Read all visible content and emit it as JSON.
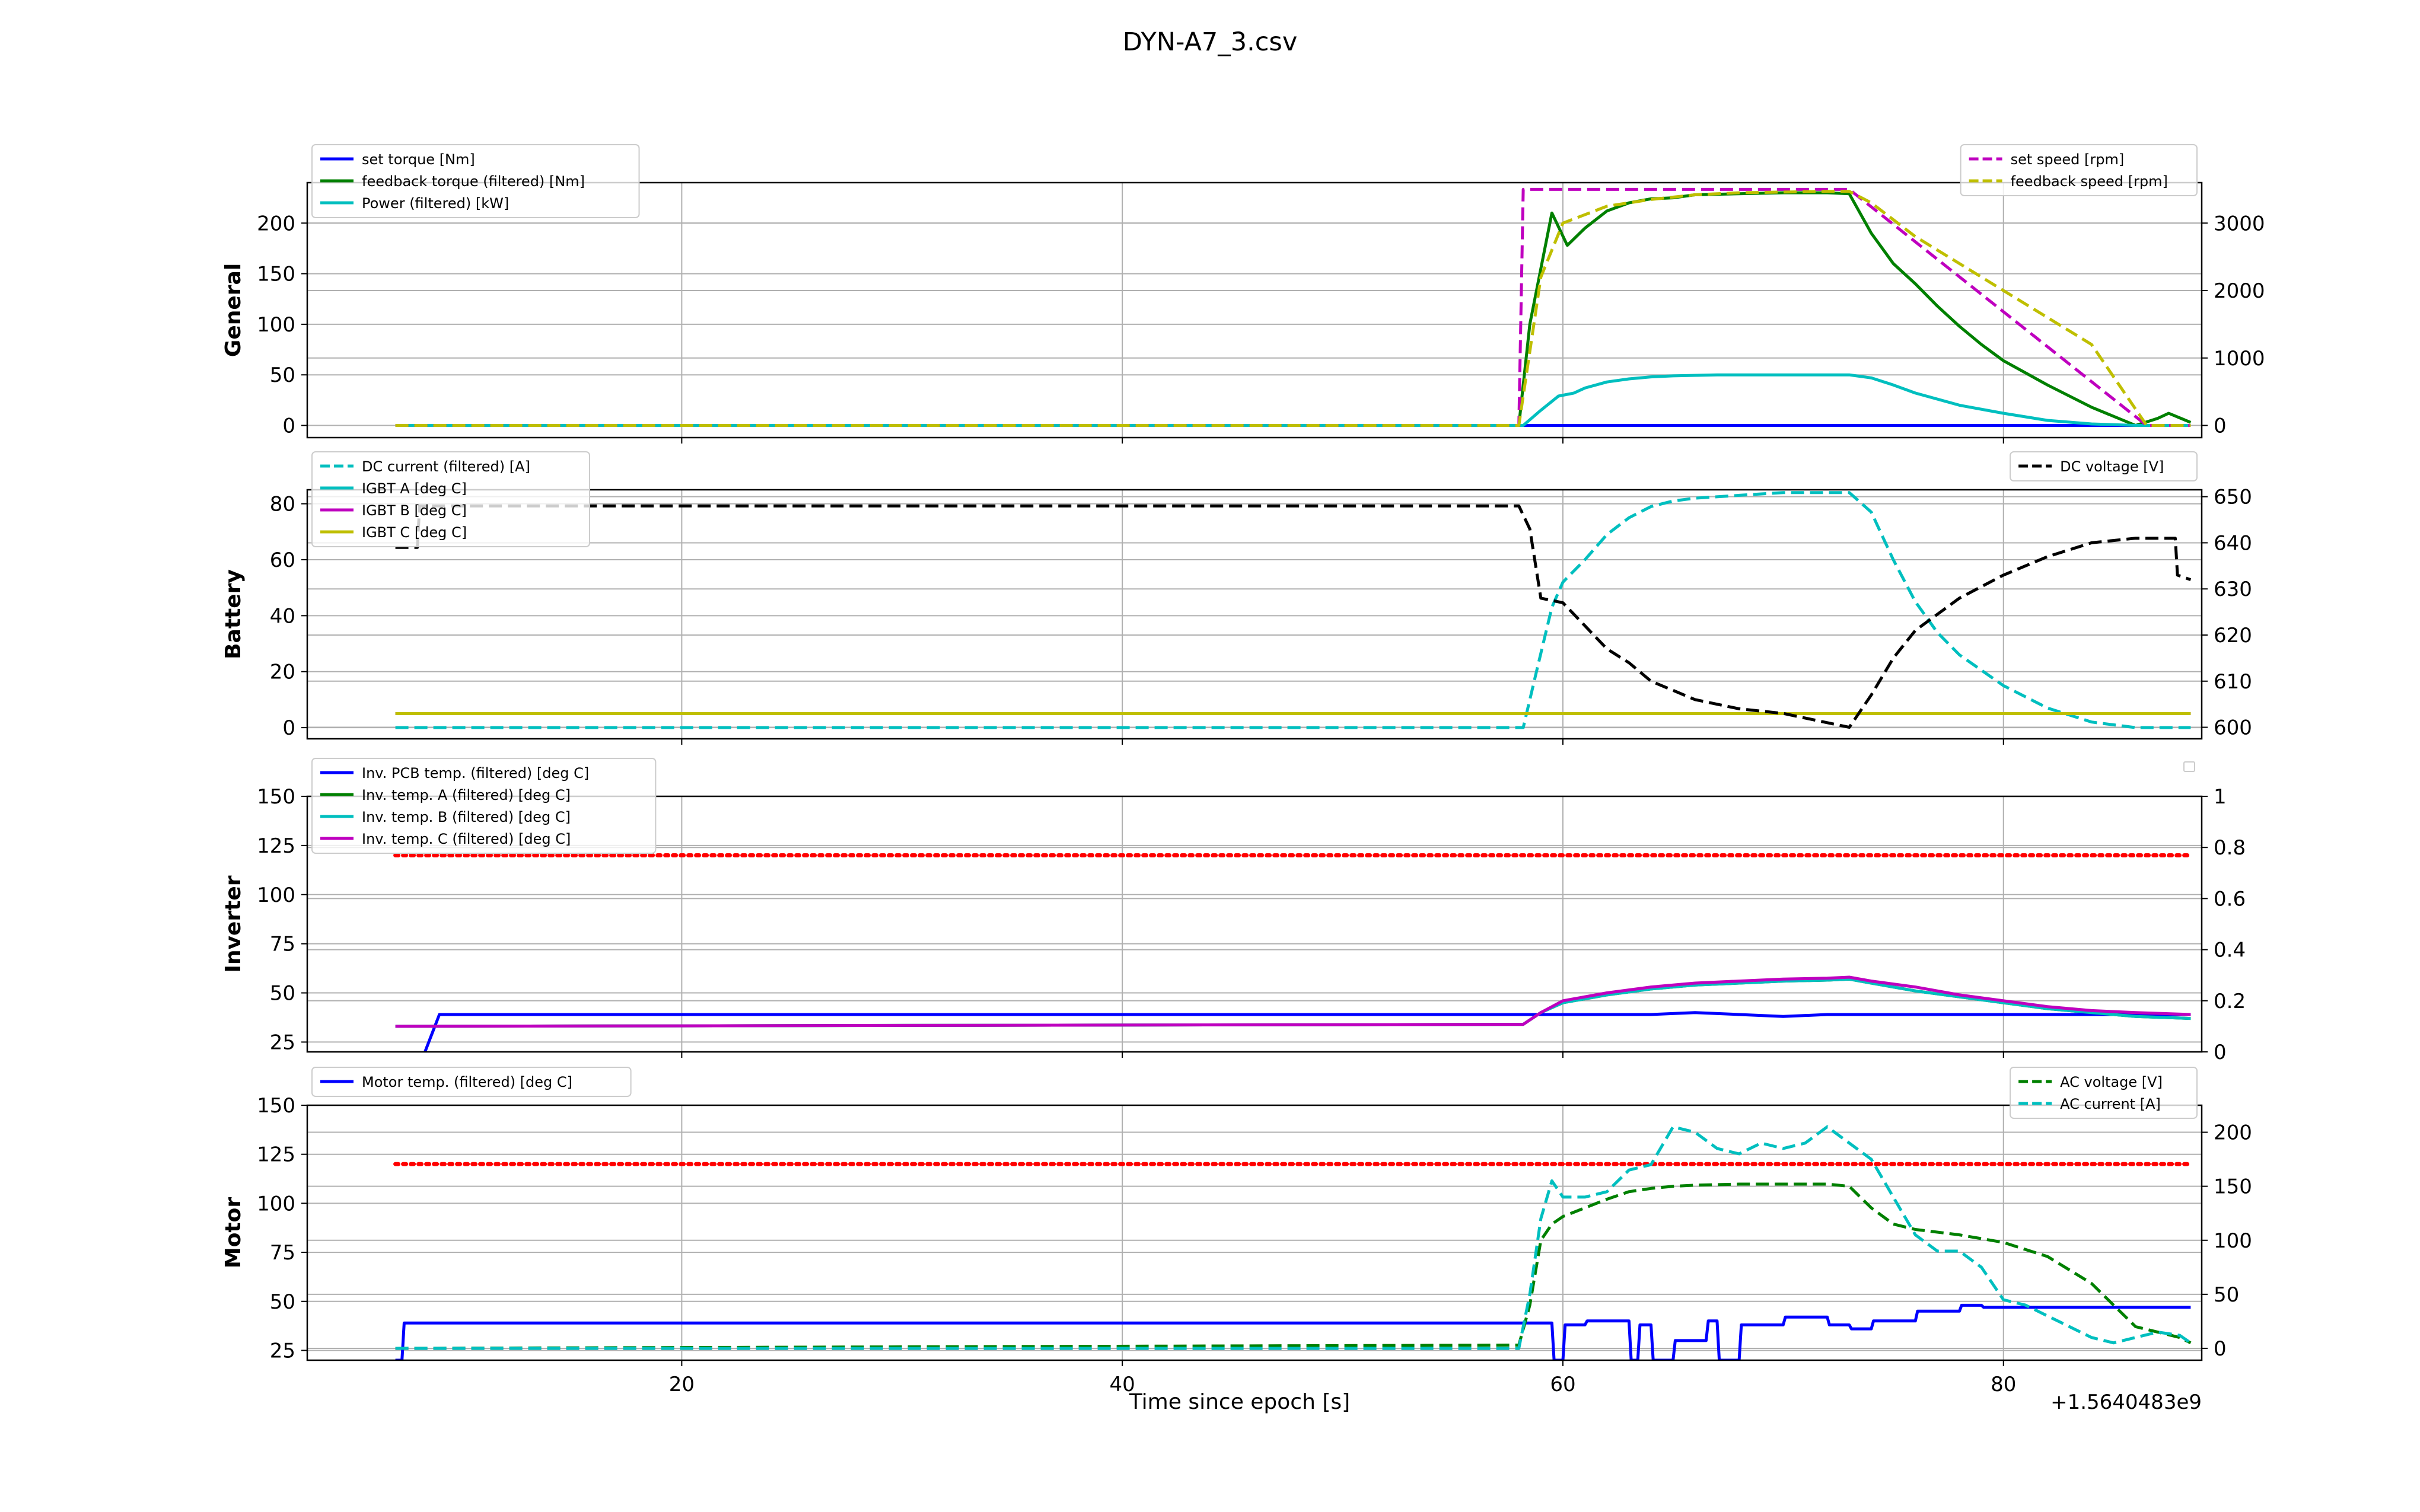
{
  "figure": {
    "title": "DYN-A7_3.csv",
    "xlabel": "Time since epoch [s]",
    "x_offset_label": "+1.5640483e9"
  },
  "chart_data": [
    {
      "type": "line",
      "ylabel": "General",
      "xlim": [
        3,
        89
      ],
      "x_ticks": [
        20,
        40,
        60,
        80
      ],
      "ylim_left": [
        -12,
        240
      ],
      "ylim_right": [
        -180,
        3600
      ],
      "y_ticks_left": [
        0,
        50,
        100,
        150,
        200
      ],
      "y_ticks_right": [
        0,
        1000,
        2000,
        3000
      ],
      "grid": true,
      "legend_left": "top-left",
      "legend_right": "top-right",
      "series": [
        {
          "name": "set torque [Nm]",
          "axis": "left",
          "color": "#0000ff",
          "dash": "solid",
          "x": [
            7,
            58.2,
            58.4,
            88.5
          ],
          "y": [
            0,
            0,
            0,
            0
          ]
        },
        {
          "name": "feedback torque (filtered) [Nm]",
          "axis": "left",
          "color": "#008000",
          "dash": "solid",
          "x": [
            7,
            58,
            58.5,
            59.5,
            60.2,
            61,
            62,
            63,
            64,
            65,
            66,
            68,
            70,
            72,
            73,
            74,
            75,
            76,
            77,
            78,
            79,
            80,
            82,
            84,
            86,
            87,
            87.5,
            88.5
          ],
          "y": [
            0,
            0,
            100,
            210,
            178,
            195,
            212,
            220,
            224,
            225,
            228,
            229,
            230,
            230,
            229,
            190,
            160,
            140,
            118,
            98,
            80,
            64,
            40,
            18,
            0,
            7,
            12,
            3
          ]
        },
        {
          "name": "Power (filtered) [kW]",
          "axis": "left",
          "color": "#00bfbf",
          "dash": "solid",
          "x": [
            7,
            58.2,
            59,
            59.8,
            60.5,
            61,
            62,
            63,
            64,
            65,
            67,
            70,
            73,
            74,
            75,
            76,
            78,
            80,
            82,
            84,
            86,
            88.5
          ],
          "y": [
            0,
            0,
            15,
            29,
            32,
            37,
            43,
            46,
            48,
            49,
            50,
            50,
            50,
            47,
            40,
            32,
            20,
            12,
            5,
            1.5,
            0,
            0
          ]
        },
        {
          "name": "set speed [rpm]",
          "axis": "right",
          "color": "#bf00bf",
          "dash": "dashed",
          "x": [
            7,
            58,
            58.2,
            73,
            86.5,
            88.5
          ],
          "y": [
            0,
            0,
            3500,
            3500,
            0,
            0
          ]
        },
        {
          "name": "feedback speed [rpm]",
          "axis": "right",
          "color": "#bfbf00",
          "dash": "dashed",
          "x": [
            7,
            58,
            59,
            60,
            62,
            64,
            66,
            68,
            70,
            72,
            73,
            74,
            76,
            80,
            84,
            86.5,
            88.5
          ],
          "y": [
            0,
            0,
            2200,
            3000,
            3250,
            3350,
            3420,
            3450,
            3460,
            3470,
            3470,
            3300,
            2800,
            2000,
            1200,
            0,
            0
          ]
        }
      ]
    },
    {
      "type": "line",
      "ylabel": "Battery",
      "xlim": [
        3,
        89
      ],
      "x_ticks": [
        20,
        40,
        60,
        80
      ],
      "ylim_left": [
        -4,
        85
      ],
      "ylim_right": [
        597.5,
        651.5
      ],
      "y_ticks_left": [
        0,
        20,
        40,
        60,
        80
      ],
      "y_ticks_right": [
        600,
        610,
        620,
        630,
        640,
        650
      ],
      "grid": true,
      "legend_left": "top-left",
      "legend_right": "top-right",
      "series": [
        {
          "name": "DC current (filtered) [A]",
          "axis": "left",
          "color": "#00bfbf",
          "dash": "dashed",
          "x": [
            7,
            58.2,
            58.8,
            59.5,
            60,
            61,
            62,
            63,
            64,
            65,
            66,
            68,
            70,
            73,
            74,
            75,
            76,
            77,
            78,
            80,
            82,
            84,
            86,
            88.5
          ],
          "y": [
            0,
            0,
            20,
            43,
            52,
            60,
            69,
            75,
            79,
            81,
            82,
            83,
            84,
            84,
            77,
            60,
            45,
            34,
            26,
            15,
            7,
            2,
            0,
            0
          ]
        },
        {
          "name": "IGBT A [deg C]",
          "axis": "left",
          "color": "#00bfbf",
          "dash": "solid",
          "x": [
            7,
            88.5
          ],
          "y": [
            5,
            5
          ]
        },
        {
          "name": "IGBT B [deg C]",
          "axis": "left",
          "color": "#bf00bf",
          "dash": "solid",
          "x": [
            7,
            88.5
          ],
          "y": [
            5,
            5
          ]
        },
        {
          "name": "IGBT C [deg C]",
          "axis": "left",
          "color": "#bfbf00",
          "dash": "solid",
          "x": [
            7,
            88.5
          ],
          "y": [
            5,
            5
          ]
        },
        {
          "name": "DC voltage [V]",
          "axis": "right",
          "color": "#000000",
          "dash": "dashed",
          "x": [
            7,
            8,
            8.1,
            58,
            58.5,
            59,
            60,
            61,
            62,
            63,
            64,
            65,
            66,
            68,
            70,
            72,
            73,
            74,
            75,
            76,
            78,
            80,
            82,
            84,
            86,
            87,
            87.8,
            87.9,
            88.5
          ],
          "y": [
            639,
            639,
            648,
            648,
            643,
            628,
            627,
            622,
            617,
            614,
            610,
            608,
            606,
            604,
            603,
            601,
            600,
            607,
            615,
            621,
            628,
            633,
            637,
            640,
            641,
            641,
            641,
            633,
            632
          ]
        }
      ]
    },
    {
      "type": "line",
      "ylabel": "Inverter",
      "xlim": [
        3,
        89
      ],
      "x_ticks": [
        20,
        40,
        60,
        80
      ],
      "ylim_left": [
        20,
        150
      ],
      "ylim_right": [
        0,
        1
      ],
      "y_ticks_left": [
        25,
        50,
        75,
        100,
        125,
        150
      ],
      "y_ticks_right": [
        0.0,
        0.2,
        0.4,
        0.6,
        0.8,
        1.0
      ],
      "grid": true,
      "legend_left": "top-left",
      "legend_right": "top-right",
      "series": [
        {
          "name": "Inv. PCB temp. (filtered) [deg C]",
          "axis": "left",
          "color": "#0000ff",
          "dash": "solid",
          "x": [
            7,
            8,
            9,
            58,
            60,
            62,
            64,
            66,
            68,
            70,
            72,
            74,
            76,
            80,
            84,
            88.5
          ],
          "y": [
            10,
            10,
            39,
            39,
            39,
            39,
            39,
            40,
            39,
            38,
            39,
            39,
            39,
            39,
            39,
            39
          ]
        },
        {
          "name": "Inv. temp. A (filtered) [deg C]",
          "axis": "left",
          "color": "#008000",
          "dash": "solid",
          "x": [
            7,
            58.2,
            59,
            60,
            62,
            64,
            66,
            68,
            70,
            72,
            73,
            74,
            76,
            78,
            80,
            82,
            84,
            86,
            88.5
          ],
          "y": [
            33,
            34,
            40,
            45,
            49,
            52,
            54,
            55,
            56,
            56.5,
            57,
            55,
            51,
            48,
            45,
            42,
            40,
            38,
            37
          ]
        },
        {
          "name": "Inv. temp. B (filtered) [deg C]",
          "axis": "left",
          "color": "#00bfbf",
          "dash": "solid",
          "x": [
            7,
            58.2,
            59,
            60,
            62,
            64,
            66,
            68,
            70,
            72,
            73,
            74,
            76,
            78,
            80,
            82,
            84,
            86,
            88.5
          ],
          "y": [
            33,
            34,
            40,
            45,
            49,
            52,
            54,
            55,
            56,
            56.5,
            57,
            55,
            51,
            48,
            45,
            42,
            40,
            38,
            37
          ]
        },
        {
          "name": "Inv. temp. C (filtered) [deg C]",
          "axis": "left",
          "color": "#bf00bf",
          "dash": "solid",
          "x": [
            7,
            58.2,
            59,
            60,
            62,
            64,
            66,
            68,
            70,
            72,
            73,
            74,
            76,
            78,
            80,
            82,
            84,
            86,
            88.5
          ],
          "y": [
            33,
            34,
            40,
            46,
            50,
            53,
            55,
            56,
            57,
            57.5,
            58,
            56,
            53,
            49,
            46,
            43,
            41,
            40,
            39
          ]
        },
        {
          "name": "",
          "axis": "left",
          "color": "#ff0000",
          "dash": "dotted",
          "x": [
            7,
            88.5
          ],
          "y": [
            120,
            120
          ]
        }
      ]
    },
    {
      "type": "line",
      "ylabel": "Motor",
      "xlim": [
        3,
        89
      ],
      "x_ticks": [
        20,
        40,
        60,
        80
      ],
      "x_tick_labels": [
        "20",
        "40",
        "60",
        "80"
      ],
      "ylim_left": [
        20,
        150
      ],
      "ylim_right": [
        -11,
        225
      ],
      "y_ticks_left": [
        25,
        50,
        75,
        100,
        125,
        150
      ],
      "y_ticks_right": [
        0,
        50,
        100,
        150,
        200
      ],
      "grid": true,
      "legend_left": "top-left",
      "legend_right": "top-right",
      "series": [
        {
          "name": "Motor temp. (filtered) [deg C]",
          "axis": "left",
          "color": "#0000ff",
          "dash": "solid",
          "x": [
            7,
            7.3,
            7.4,
            58,
            59.5,
            59.6,
            60,
            60.1,
            61,
            61.1,
            63,
            63.1,
            63.4,
            63.5,
            64,
            64.1,
            65,
            65.1,
            66.5,
            66.6,
            67,
            67.1,
            68,
            68.1,
            70,
            70.1,
            72,
            72.1,
            73,
            73.1,
            74,
            74.1,
            76,
            76.1,
            78,
            78.1,
            79,
            79.1,
            88.5
          ],
          "y": [
            20,
            20,
            39,
            39,
            39,
            20,
            20,
            38,
            38,
            40,
            40,
            20,
            20,
            38,
            38,
            20,
            20,
            30,
            30,
            40,
            40,
            20,
            20,
            38,
            38,
            42,
            42,
            38,
            38,
            36,
            36,
            40,
            40,
            45,
            45,
            48,
            48,
            47,
            47
          ]
        },
        {
          "name": "",
          "axis": "left",
          "color": "#ff0000",
          "dash": "dotted",
          "x": [
            7,
            88.5
          ],
          "y": [
            120,
            120
          ]
        },
        {
          "name": "AC voltage [V]",
          "axis": "right",
          "color": "#008000",
          "dash": "dashed",
          "x": [
            7,
            58,
            58.5,
            59,
            59.5,
            60,
            61,
            62,
            63,
            64,
            65,
            66,
            68,
            70,
            72,
            73,
            74,
            75,
            76,
            78,
            80,
            82,
            84,
            85,
            86,
            87,
            88,
            88.5
          ],
          "y": [
            0,
            3,
            40,
            100,
            115,
            122,
            130,
            138,
            145,
            148,
            150,
            151,
            152,
            152,
            152,
            150,
            130,
            115,
            110,
            105,
            98,
            85,
            60,
            40,
            20,
            15,
            10,
            5
          ]
        },
        {
          "name": "AC current [A]",
          "axis": "right",
          "color": "#00bfbf",
          "dash": "dashed",
          "x": [
            7,
            58,
            58.5,
            59,
            59.5,
            60,
            61,
            62,
            63,
            64,
            65,
            66,
            67,
            68,
            69,
            70,
            71,
            72,
            73,
            74,
            75,
            76,
            77,
            78,
            79,
            80,
            81,
            82,
            83,
            84,
            85,
            86,
            87,
            88,
            88.5
          ],
          "y": [
            0,
            0,
            50,
            120,
            155,
            140,
            140,
            145,
            165,
            170,
            205,
            200,
            185,
            180,
            190,
            185,
            190,
            205,
            190,
            175,
            140,
            105,
            90,
            90,
            75,
            45,
            40,
            30,
            20,
            10,
            5,
            10,
            15,
            12,
            5
          ]
        }
      ]
    }
  ]
}
